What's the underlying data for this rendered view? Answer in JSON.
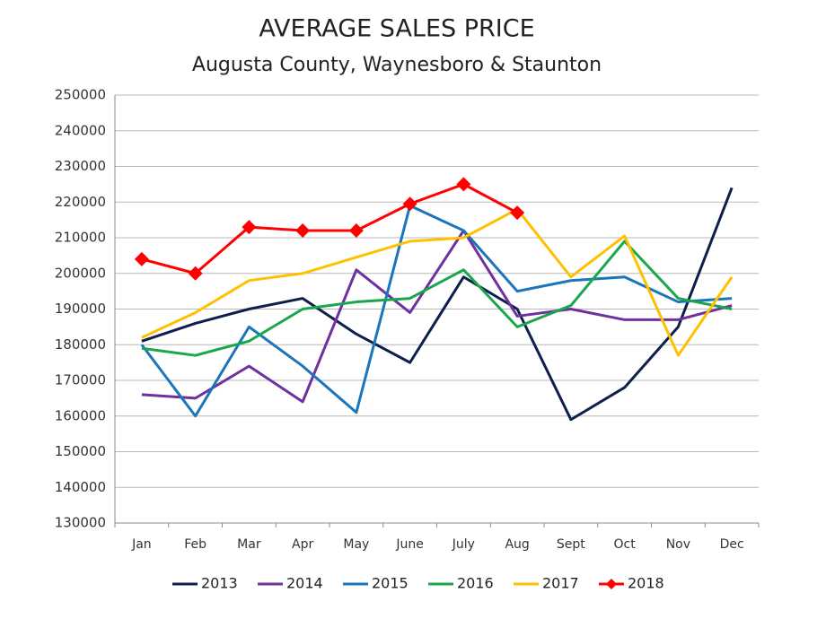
{
  "chart_data": {
    "type": "line",
    "title": "AVERAGE SALES PRICE",
    "subtitle": "Augusta County, Waynesboro & Staunton",
    "categories": [
      "Jan",
      "Feb",
      "Mar",
      "Apr",
      "May",
      "June",
      "July",
      "Aug",
      "Sept",
      "Oct",
      "Nov",
      "Dec"
    ],
    "series": [
      {
        "name": "2013",
        "color": "#0e1f4d",
        "values": [
          181000,
          186000,
          190000,
          193000,
          183000,
          175000,
          199000,
          190000,
          159000,
          168000,
          185000,
          224000
        ]
      },
      {
        "name": "2014",
        "color": "#7030a0",
        "values": [
          166000,
          165000,
          174000,
          164000,
          201000,
          189000,
          212000,
          188000,
          190000,
          187000,
          187000,
          191000
        ]
      },
      {
        "name": "2015",
        "color": "#1b75bb",
        "values": [
          180000,
          160000,
          185000,
          174000,
          161000,
          219000,
          212000,
          195000,
          198000,
          199000,
          192000,
          193000
        ]
      },
      {
        "name": "2016",
        "color": "#1aa64a",
        "values": [
          179000,
          177000,
          181000,
          190000,
          192000,
          193000,
          201000,
          185000,
          191000,
          209000,
          193000,
          190000
        ]
      },
      {
        "name": "2017",
        "color": "#ffc000",
        "values": [
          182000,
          189000,
          198000,
          200000,
          204500,
          209000,
          210000,
          218000,
          199000,
          210500,
          177000,
          199000
        ]
      },
      {
        "name": "2018",
        "color": "#ff0000",
        "marker": "diamond",
        "values": [
          204000,
          200000,
          213000,
          212000,
          212000,
          219500,
          225000,
          217000,
          null,
          null,
          null,
          null
        ]
      }
    ],
    "ylim": [
      130000,
      250000
    ],
    "yticks": [
      130000,
      140000,
      150000,
      160000,
      170000,
      180000,
      190000,
      200000,
      210000,
      220000,
      230000,
      240000,
      250000
    ],
    "grid": true,
    "legend": "bottom"
  }
}
